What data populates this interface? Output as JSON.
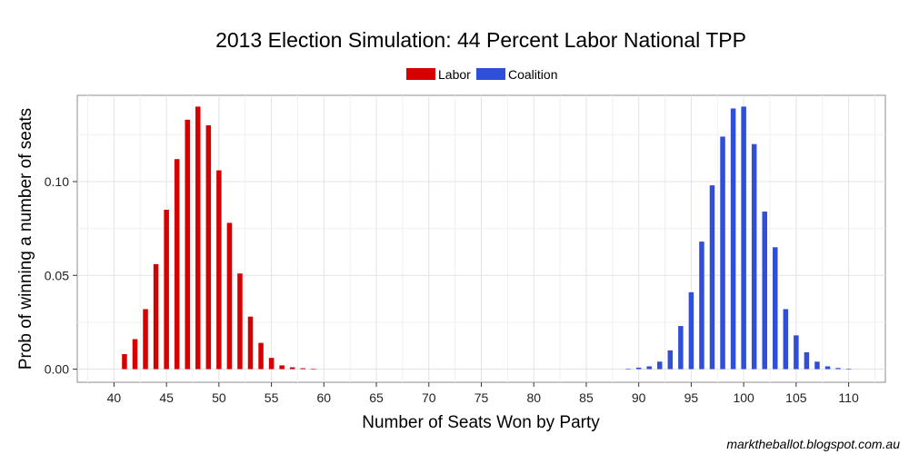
{
  "chart_data": {
    "type": "bar",
    "title": "2013 Election Simulation: 44 Percent Labor National TPP",
    "xlabel": "Number of Seats Won by Party",
    "ylabel": "Prob of winning a number of seats",
    "xlim": [
      36.5,
      113.5
    ],
    "ylim": [
      -0.007,
      0.146
    ],
    "xticks": [
      "40",
      "45",
      "50",
      "55",
      "60",
      "65",
      "70",
      "75",
      "80",
      "85",
      "90",
      "95",
      "100",
      "105",
      "110"
    ],
    "xtick_values": [
      40,
      45,
      50,
      55,
      60,
      65,
      70,
      75,
      80,
      85,
      90,
      95,
      100,
      105,
      110
    ],
    "yticks": [
      "0.00",
      "0.05",
      "0.10"
    ],
    "ytick_values": [
      0.0,
      0.05,
      0.1
    ],
    "legend": {
      "position": "top"
    },
    "series": [
      {
        "name": "Labor",
        "color": "#d60000",
        "x": [
          41,
          42,
          43,
          44,
          45,
          46,
          47,
          48,
          49,
          50,
          51,
          52,
          53,
          54,
          55,
          56,
          57,
          58,
          59
        ],
        "values": [
          0.008,
          0.016,
          0.032,
          0.056,
          0.085,
          0.112,
          0.133,
          0.14,
          0.13,
          0.106,
          0.078,
          0.051,
          0.028,
          0.014,
          0.006,
          0.002,
          0.001,
          0.0005,
          0.0002
        ]
      },
      {
        "name": "Coalition",
        "color": "#2f4fd8",
        "x": [
          89,
          90,
          91,
          92,
          93,
          94,
          95,
          96,
          97,
          98,
          99,
          100,
          101,
          102,
          103,
          104,
          105,
          106,
          107,
          108,
          109,
          110
        ],
        "values": [
          0.0003,
          0.0008,
          0.0015,
          0.004,
          0.01,
          0.023,
          0.041,
          0.068,
          0.098,
          0.124,
          0.139,
          0.14,
          0.12,
          0.084,
          0.065,
          0.032,
          0.018,
          0.009,
          0.004,
          0.0015,
          0.0006,
          0.0002
        ]
      }
    ]
  },
  "credit": "marktheballot.blogspot.com.au"
}
